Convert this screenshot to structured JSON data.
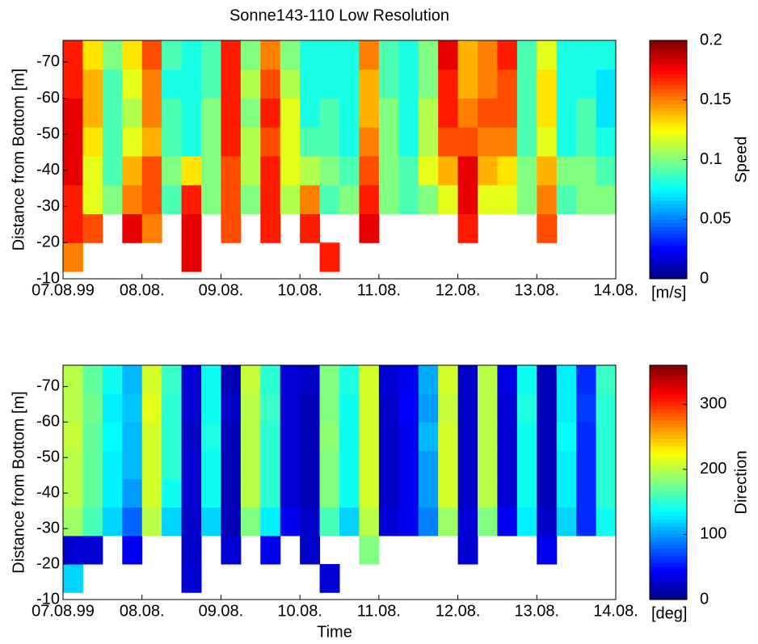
{
  "chart_data": [
    {
      "type": "heatmap",
      "title": "Sonne143-110   Low Resolution",
      "ylabel": "Distance from Bottom  [m]",
      "colorbar_label": "Speed",
      "colorbar_unit": "[m/s]",
      "xlim": [
        0,
        7
      ],
      "xticks": [
        {
          "value": 0,
          "label": "07.08.99"
        },
        {
          "value": 1,
          "label": "08.08."
        },
        {
          "value": 2,
          "label": "09.08."
        },
        {
          "value": 3,
          "label": "10.08."
        },
        {
          "value": 4,
          "label": "11.08."
        },
        {
          "value": 5,
          "label": "12.08."
        },
        {
          "value": 6,
          "label": "13.08."
        },
        {
          "value": 7,
          "label": "14.08."
        }
      ],
      "ylim": [
        -10,
        -76
      ],
      "yticks": [
        -10,
        -20,
        -30,
        -40,
        -50,
        -60,
        -70
      ],
      "clim": [
        0,
        0.2
      ],
      "cticks": [
        0,
        0.05,
        0.1,
        0.15,
        0.2
      ],
      "x": [
        0.125,
        0.375,
        0.625,
        0.875,
        1.125,
        1.375,
        1.625,
        1.875,
        2.125,
        2.375,
        2.625,
        2.875,
        3.125,
        3.375,
        3.625,
        3.875,
        4.125,
        4.375,
        4.625,
        4.875,
        5.125,
        5.375,
        5.625,
        5.875,
        6.125,
        6.375,
        6.625,
        6.875
      ],
      "y": [
        -16,
        -24,
        -32,
        -40,
        -48,
        -56,
        -64,
        -72
      ],
      "values": [
        [
          0.15,
          null,
          null,
          null,
          null,
          null,
          0.18,
          null,
          null,
          null,
          null,
          null,
          null,
          0.17,
          null,
          null,
          null,
          null,
          null,
          null,
          null,
          null,
          null,
          null,
          null,
          null,
          null,
          null
        ],
        [
          0.17,
          0.16,
          null,
          0.18,
          0.15,
          null,
          0.18,
          null,
          0.16,
          null,
          0.17,
          null,
          0.17,
          null,
          null,
          0.18,
          null,
          null,
          null,
          null,
          0.17,
          null,
          null,
          null,
          0.16,
          null,
          null,
          null
        ],
        [
          0.17,
          0.12,
          0.1,
          0.15,
          0.16,
          0.09,
          0.17,
          0.1,
          0.16,
          0.1,
          0.17,
          0.11,
          0.15,
          0.09,
          0.1,
          0.17,
          0.1,
          0.09,
          0.1,
          0.12,
          0.18,
          0.12,
          0.12,
          0.1,
          0.15,
          0.09,
          0.1,
          0.1
        ],
        [
          0.18,
          0.12,
          0.09,
          0.14,
          0.16,
          0.1,
          0.13,
          0.1,
          0.16,
          0.11,
          0.17,
          0.12,
          0.11,
          0.1,
          0.09,
          0.16,
          0.1,
          0.09,
          0.12,
          0.14,
          0.18,
          0.14,
          0.13,
          0.1,
          0.14,
          0.1,
          0.1,
          0.09
        ],
        [
          0.18,
          0.13,
          0.09,
          0.12,
          0.14,
          0.09,
          0.08,
          0.1,
          0.17,
          0.11,
          0.16,
          0.12,
          0.09,
          0.09,
          0.08,
          0.15,
          0.1,
          0.08,
          0.11,
          0.16,
          0.16,
          0.15,
          0.15,
          0.09,
          0.12,
          0.08,
          0.09,
          0.08
        ],
        [
          0.18,
          0.14,
          0.09,
          0.11,
          0.15,
          0.09,
          0.08,
          0.1,
          0.17,
          0.1,
          0.17,
          0.12,
          0.08,
          0.09,
          0.08,
          0.14,
          0.1,
          0.08,
          0.11,
          0.17,
          0.15,
          0.16,
          0.16,
          0.09,
          0.13,
          0.08,
          0.09,
          0.07
        ],
        [
          0.17,
          0.14,
          0.09,
          0.12,
          0.15,
          0.08,
          0.08,
          0.09,
          0.17,
          0.11,
          0.16,
          0.11,
          0.08,
          0.08,
          0.08,
          0.14,
          0.09,
          0.08,
          0.1,
          0.17,
          0.14,
          0.15,
          0.16,
          0.09,
          0.13,
          0.08,
          0.08,
          0.07
        ],
        [
          0.17,
          0.13,
          0.1,
          0.13,
          0.16,
          0.09,
          0.08,
          0.09,
          0.17,
          0.1,
          0.15,
          0.1,
          0.08,
          0.08,
          0.08,
          0.15,
          0.09,
          0.08,
          0.1,
          0.18,
          0.14,
          0.15,
          0.17,
          0.09,
          0.12,
          0.08,
          0.08,
          0.08
        ]
      ]
    },
    {
      "type": "heatmap",
      "ylabel": "Distance from Bottom  [m]",
      "xlabel": "Time",
      "colorbar_label": "Direction",
      "colorbar_unit": "[deg]",
      "xlim": [
        0,
        7
      ],
      "xticks": [
        {
          "value": 0,
          "label": "07.08.99"
        },
        {
          "value": 1,
          "label": "08.08."
        },
        {
          "value": 2,
          "label": "09.08."
        },
        {
          "value": 3,
          "label": "10.08."
        },
        {
          "value": 4,
          "label": "11.08."
        },
        {
          "value": 5,
          "label": "12.08."
        },
        {
          "value": 6,
          "label": "13.08."
        },
        {
          "value": 7,
          "label": "14.08."
        }
      ],
      "ylim": [
        -10,
        -76
      ],
      "yticks": [
        -10,
        -20,
        -30,
        -40,
        -50,
        -60,
        -70
      ],
      "clim": [
        0,
        360
      ],
      "cticks": [
        0,
        100,
        200,
        300
      ],
      "x": [
        0.125,
        0.375,
        0.625,
        0.875,
        1.125,
        1.375,
        1.625,
        1.875,
        2.125,
        2.375,
        2.625,
        2.875,
        3.125,
        3.375,
        3.625,
        3.875,
        4.125,
        4.375,
        4.625,
        4.875,
        5.125,
        5.375,
        5.625,
        5.875,
        6.125,
        6.375,
        6.625,
        6.875
      ],
      "y": [
        -16,
        -24,
        -32,
        -40,
        -48,
        -56,
        -64,
        -72
      ],
      "values": [
        [
          120,
          null,
          null,
          null,
          null,
          null,
          30,
          null,
          null,
          null,
          null,
          null,
          null,
          30,
          null,
          null,
          null,
          null,
          null,
          null,
          null,
          null,
          null,
          null,
          null,
          null,
          null,
          null
        ],
        [
          30,
          30,
          null,
          40,
          null,
          null,
          25,
          null,
          30,
          null,
          40,
          null,
          25,
          null,
          null,
          180,
          null,
          null,
          null,
          null,
          30,
          null,
          null,
          null,
          40,
          null,
          null,
          null
        ],
        [
          190,
          160,
          120,
          80,
          200,
          120,
          25,
          120,
          20,
          180,
          130,
          40,
          25,
          160,
          120,
          200,
          30,
          40,
          90,
          190,
          30,
          180,
          40,
          130,
          25,
          120,
          60,
          140
        ],
        [
          200,
          170,
          130,
          100,
          210,
          140,
          30,
          140,
          20,
          200,
          150,
          30,
          20,
          180,
          140,
          210,
          25,
          40,
          100,
          210,
          25,
          200,
          30,
          140,
          20,
          130,
          60,
          150
        ],
        [
          200,
          170,
          130,
          110,
          210,
          150,
          30,
          140,
          20,
          200,
          150,
          30,
          20,
          180,
          140,
          210,
          25,
          40,
          100,
          210,
          25,
          200,
          30,
          140,
          20,
          130,
          60,
          150
        ],
        [
          205,
          170,
          135,
          110,
          210,
          150,
          25,
          145,
          20,
          200,
          150,
          30,
          20,
          185,
          140,
          210,
          25,
          40,
          110,
          210,
          25,
          200,
          30,
          140,
          20,
          135,
          60,
          150
        ],
        [
          200,
          175,
          130,
          115,
          215,
          150,
          30,
          140,
          25,
          200,
          155,
          30,
          20,
          180,
          140,
          210,
          25,
          45,
          100,
          205,
          25,
          200,
          30,
          145,
          20,
          130,
          65,
          150
        ],
        [
          200,
          170,
          140,
          110,
          210,
          155,
          30,
          140,
          20,
          205,
          150,
          30,
          25,
          180,
          145,
          210,
          30,
          40,
          105,
          210,
          25,
          200,
          35,
          140,
          20,
          130,
          60,
          155
        ]
      ]
    }
  ]
}
